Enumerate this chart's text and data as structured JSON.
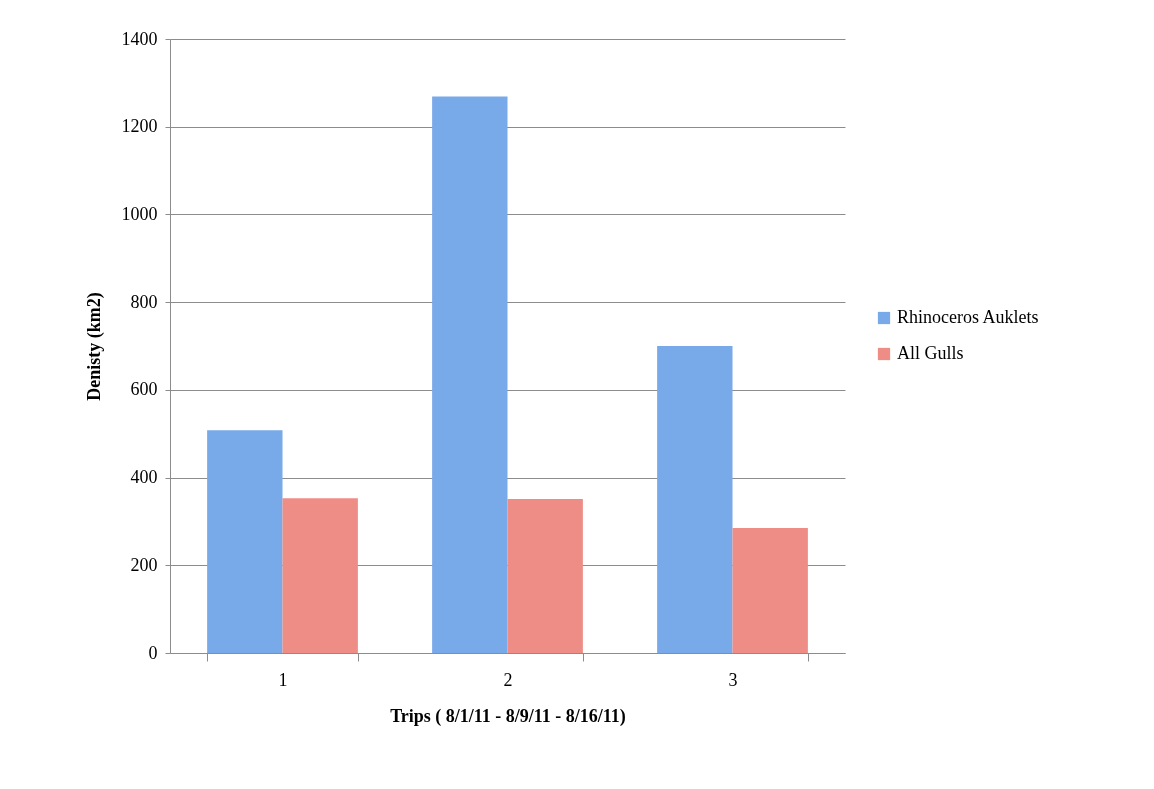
{
  "chart_data": {
    "type": "bar",
    "xlabel": "Trips ( 8/1/11 - 8/9/11 - 8/16/11)",
    "ylabel": "Denisty (km2)",
    "categories": [
      "1",
      "2",
      "3"
    ],
    "series": [
      {
        "name": "Rhinoceros Auklets",
        "color": "#78a9e8",
        "values": [
          508,
          1269,
          700
        ]
      },
      {
        "name": "All Gulls",
        "color": "#ee8c86",
        "values": [
          353,
          351,
          285
        ]
      }
    ],
    "ylim": [
      0,
      1400
    ],
    "yticks": [
      0,
      200,
      400,
      600,
      800,
      1000,
      1200,
      1400
    ],
    "grid": "y",
    "legend": "right"
  }
}
